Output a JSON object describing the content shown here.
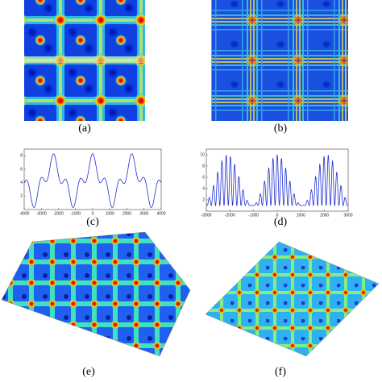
{
  "panels": {
    "a": "(a)",
    "b": "(b)",
    "c": "(c)",
    "d": "(d)",
    "e": "(e)",
    "f": "(f)"
  },
  "plot_c": {
    "xticks": [
      -4000,
      -3000,
      -2000,
      -1000,
      0,
      1000,
      2000,
      3000,
      4000
    ],
    "yticks": [
      2,
      4,
      6,
      8
    ]
  },
  "plot_d": {
    "xticks": [
      -3000,
      -2000,
      -1000,
      0,
      1000,
      2000,
      3000
    ],
    "yticks": [
      2,
      4,
      6,
      8,
      10
    ]
  }
}
